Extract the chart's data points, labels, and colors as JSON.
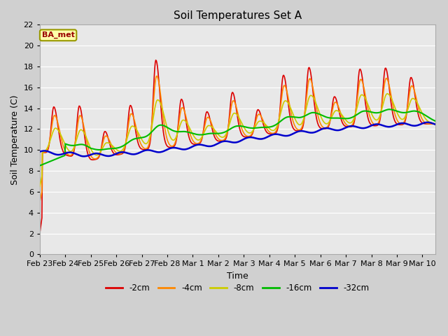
{
  "title": "Soil Temperatures Set A",
  "xlabel": "Time",
  "ylabel": "Soil Temperature (C)",
  "ylim": [
    0,
    22
  ],
  "yticks": [
    0,
    2,
    4,
    6,
    8,
    10,
    12,
    14,
    16,
    18,
    20,
    22
  ],
  "annotation": "BA_met",
  "fig_facecolor": "#d0d0d0",
  "ax_facecolor": "#e8e8e8",
  "series_colors": {
    "-2cm": "#dd0000",
    "-4cm": "#ff8800",
    "-8cm": "#cccc00",
    "-16cm": "#00bb00",
    "-32cm": "#0000cc"
  },
  "legend_labels": [
    "-2cm",
    "-4cm",
    "-8cm",
    "-16cm",
    "-32cm"
  ],
  "x_tick_labels": [
    "Feb 23",
    "Feb 24",
    "Feb 25",
    "Feb 26",
    "Feb 27",
    "Feb 28",
    "Mar 1",
    "Mar 2",
    "Mar 3",
    "Mar 4",
    "Mar 5",
    "Mar 6",
    "Mar 7",
    "Mar 8",
    "Mar 9",
    "Mar 10"
  ],
  "grid_color": "#ffffff"
}
